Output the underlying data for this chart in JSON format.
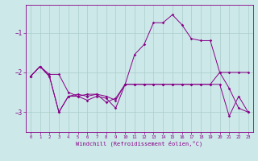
{
  "xlabel": "Windchill (Refroidissement éolien,°C)",
  "bg_color": "#cce8e8",
  "grid_color": "#aacccc",
  "line_color": "#880088",
  "xlim": [
    -0.5,
    23.5
  ],
  "ylim": [
    -3.5,
    -0.3
  ],
  "yticks": [
    -3,
    -2,
    -1
  ],
  "xticks": [
    0,
    1,
    2,
    3,
    4,
    5,
    6,
    7,
    8,
    9,
    10,
    11,
    12,
    13,
    14,
    15,
    16,
    17,
    18,
    19,
    20,
    21,
    22,
    23
  ],
  "sA_y": [
    -2.1,
    -1.85,
    -2.05,
    -2.05,
    -2.5,
    -2.6,
    -2.55,
    -2.55,
    -2.6,
    -2.7,
    -2.3,
    -1.55,
    -1.3,
    -0.75,
    -0.75,
    -0.55,
    -0.8,
    -1.15,
    -1.2,
    -1.2,
    -2.0,
    -2.0,
    -2.0,
    -2.0
  ],
  "sB_y": [
    -2.1,
    -1.85,
    -2.1,
    -3.0,
    -2.6,
    -2.55,
    -2.6,
    -2.55,
    -2.75,
    -2.65,
    -2.3,
    -2.3,
    -2.3,
    -2.3,
    -2.3,
    -2.3,
    -2.3,
    -2.3,
    -2.3,
    -2.3,
    -2.0,
    -2.4,
    -2.9,
    -3.0
  ],
  "sC_y": [
    -2.1,
    -1.85,
    -2.1,
    -3.0,
    -2.6,
    -2.6,
    -2.7,
    -2.6,
    -2.65,
    -2.9,
    -2.3,
    -2.3,
    -2.3,
    -2.3,
    -2.3,
    -2.3,
    -2.3,
    -2.3,
    -2.3,
    -2.3,
    -2.3,
    -3.1,
    -2.6,
    -3.0
  ],
  "linewidth": 0.7,
  "markersize": 1.8
}
